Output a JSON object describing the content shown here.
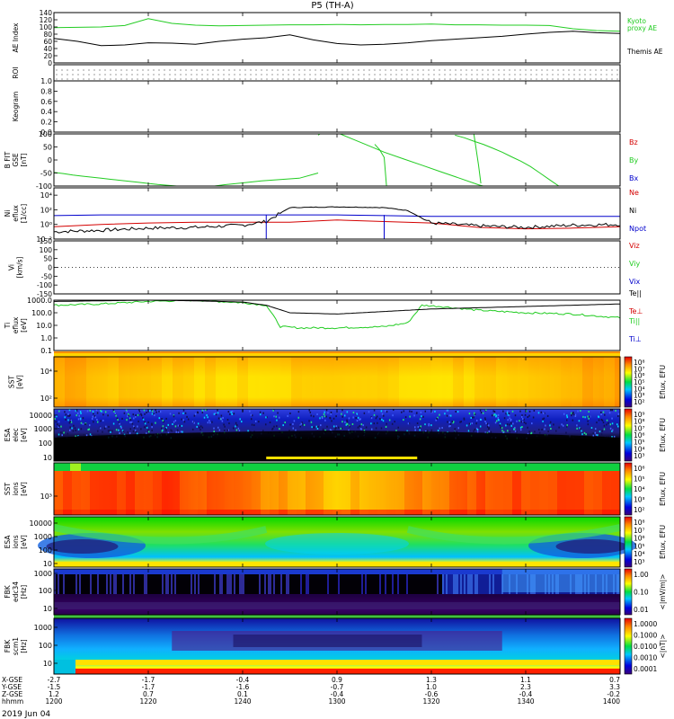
{
  "title": "P5 (TH-A)",
  "date": "2019 Jun 04",
  "colors": {
    "kyoto": "#22cc22",
    "themis": "#000000",
    "red": "#d40000",
    "green": "#22cc22",
    "blue": "#0000cc",
    "black": "#000000"
  },
  "chart_data": {
    "type": "multi-panel timeseries",
    "time_axis": {
      "range": [
        "12:00",
        "14:00"
      ],
      "ticks": [
        "1200",
        "1220",
        "1240",
        "1300",
        "1320",
        "1340",
        "1400"
      ],
      "rows": [
        {
          "label": "X-GSE",
          "values": [
            "-2.7",
            "-1.7",
            "-0.4",
            "0.9",
            "1.3",
            "1.1",
            "0.7"
          ]
        },
        {
          "label": "Y-GSE",
          "values": [
            "-1.5",
            "-1.7",
            "-1.6",
            "-0.7",
            "1.0",
            "2.3",
            "3.3"
          ]
        },
        {
          "label": "Z-GSE",
          "values": [
            "1.2",
            "0.7",
            "0.1",
            "-0.4",
            "-0.6",
            "-0.4",
            "-0.2"
          ]
        },
        {
          "label": "hhmm",
          "values": [
            "1200",
            "1220",
            "1240",
            "1300",
            "1320",
            "1340",
            "1400"
          ]
        }
      ]
    },
    "panels": [
      {
        "id": "ae",
        "ylabel": "AE Index",
        "ylim": [
          0,
          140
        ],
        "yticks": [
          "0",
          "20",
          "40",
          "60",
          "80",
          "100",
          "120",
          "140"
        ],
        "series": [
          {
            "name": "Kyoto proxy AE",
            "label_lines": [
              "Kyoto",
              "proxy AE"
            ],
            "color": "#22cc22",
            "x": [
              0,
              5,
              10,
              15,
              20,
              25,
              30,
              35,
              40,
              45,
              50,
              55,
              60,
              65,
              70,
              75,
              80,
              85,
              90,
              95,
              100,
              105,
              110,
              115,
              120
            ],
            "y": [
              98,
              99,
              100,
              104,
              123,
              110,
              105,
              103,
              104,
              105,
              106,
              106,
              107,
              106,
              107,
              107,
              108,
              106,
              106,
              105,
              105,
              104,
              95,
              90,
              88
            ]
          },
          {
            "name": "Themis AE",
            "label_lines": [
              "Themis AE"
            ],
            "color": "#000000",
            "x": [
              0,
              5,
              10,
              15,
              20,
              25,
              30,
              35,
              40,
              45,
              50,
              55,
              60,
              65,
              70,
              75,
              80,
              85,
              90,
              95,
              100,
              105,
              110,
              115,
              120
            ],
            "y": [
              68,
              60,
              48,
              50,
              56,
              55,
              52,
              60,
              66,
              70,
              78,
              64,
              54,
              50,
              52,
              56,
              62,
              66,
              70,
              74,
              80,
              85,
              88,
              84,
              82
            ]
          }
        ]
      },
      {
        "id": "roi",
        "ylabel": "ROI",
        "kind": "dots"
      },
      {
        "id": "keogram",
        "ylabel": "Keogram",
        "ylim": [
          0,
          1
        ],
        "yticks": [
          "0.0",
          "0.2",
          "0.4",
          "0.6",
          "0.8",
          "1.0"
        ]
      },
      {
        "id": "bfit",
        "ylabel_lines": [
          "B FIT",
          "GSE",
          "[nT]"
        ],
        "ylim": [
          -100,
          100
        ],
        "yticks": [
          "-100",
          "-50",
          "0",
          "50",
          "100"
        ],
        "legend": [
          "Bz",
          "By",
          "Bx"
        ],
        "series": [
          {
            "name": "By",
            "color": "#22cc22",
            "segments": [
              {
                "x": [
                  0,
                  2,
                  4,
                  6,
                  8,
                  10,
                  12,
                  14,
                  16,
                  18,
                  20,
                  22,
                  24,
                  26,
                  28,
                  30,
                  32,
                  34,
                  36
                ],
                "y": [
                  -48,
                  -52,
                  -58,
                  -62,
                  -66,
                  -70,
                  -74,
                  -78,
                  -82,
                  -86,
                  -90,
                  -94,
                  -97,
                  -100,
                  -104,
                  -110,
                  -116,
                  -124,
                  -130
                ]
              },
              {
                "x": [
                  26,
                  30,
                  36,
                  40,
                  44,
                  48,
                  52,
                  56
                ],
                "y": [
                  -130,
                  -110,
                  -95,
                  -88,
                  -80,
                  -75,
                  -70,
                  -50
                ]
              },
              {
                "x": [
                  56,
                  58,
                  62,
                  66,
                  70,
                  74,
                  78,
                  82,
                  86,
                  90,
                  94,
                  98,
                  102,
                  106,
                  110,
                  114,
                  118,
                  120
                ],
                "y": [
                  95,
                  120,
                  90,
                  60,
                  30,
                  5,
                  -20,
                  -45,
                  -70,
                  -95,
                  -115,
                  -130,
                  -140,
                  -150,
                  -155,
                  -160,
                  -165,
                  -170
                ]
              },
              {
                "x": [
                  68,
                  69,
                  70,
                  70.5
                ],
                "y": [
                  60,
                  40,
                  10,
                  -100
                ]
              },
              {
                "x": [
                  89,
                  90,
                  90.5
                ],
                "y": [
                  100,
                  -20,
                  -90
                ]
              },
              {
                "x": [
                  85,
                  87,
                  89,
                  91,
                  93,
                  95,
                  97,
                  99,
                  101,
                  103,
                  105,
                  107
                ],
                "y": [
                  95,
                  85,
                  72,
                  60,
                  45,
                  30,
                  12,
                  -5,
                  -25,
                  -50,
                  -75,
                  -100
                ]
              }
            ]
          }
        ]
      },
      {
        "id": "density",
        "ylabel_lines": [
          "Ni",
          "eflux",
          "[1/cc]"
        ],
        "ylim_log": [
          -2,
          5
        ],
        "yticks": [
          "10⁻²",
          "10⁰",
          "10²",
          "10⁴"
        ],
        "legend": [
          "Ne",
          "Ni",
          "Npot"
        ],
        "series": [
          {
            "name": "Ne",
            "color": "#d40000",
            "x": [
              0,
              10,
              20,
              30,
              40,
              50,
              60,
              70,
              80,
              90,
              100,
              110,
              120
            ],
            "y": [
              -0.3,
              0,
              0.2,
              0.3,
              0.3,
              0.3,
              0.6,
              0.4,
              0.2,
              -0.4,
              -0.6,
              -0.5,
              -0.3
            ]
          },
          {
            "name": "Npot",
            "color": "#0000cc",
            "x": [
              0,
              10,
              20,
              30,
              40,
              50,
              60,
              70,
              80,
              90,
              100,
              110,
              120
            ],
            "y": [
              1.2,
              1.3,
              1.3,
              1.3,
              1.3,
              1.3,
              1.3,
              1.2,
              1.1,
              1.1,
              1.1,
              1.1,
              1.1
            ]
          },
          {
            "name": "Ni",
            "color": "#000000",
            "x": [
              0,
              10,
              20,
              30,
              40,
              45,
              50,
              60,
              70,
              75,
              80,
              90,
              100,
              110,
              120
            ],
            "y": [
              -1,
              -0.8,
              -0.5,
              -0.4,
              -0.1,
              0.4,
              2.3,
              2.4,
              2.3,
              1.9,
              0.2,
              -0.2,
              -0.4,
              -0.1,
              0
            ]
          }
        ]
      },
      {
        "id": "velocity",
        "ylabel_lines": [
          "Vi",
          "[km/s]"
        ],
        "ylim": [
          -150,
          150
        ],
        "yticks": [
          "-150",
          "-100",
          "-50",
          "0",
          "50",
          "100",
          "150"
        ],
        "legend": [
          "Viz",
          "Viy",
          "Vix"
        ]
      },
      {
        "id": "temperature",
        "ylabel_lines": [
          "Ti",
          "eflux",
          "[eV]"
        ],
        "ylim_log": [
          -1,
          3
        ],
        "yticks": [
          "0.1",
          "1.0",
          "10.0",
          "100.0",
          "1000.0"
        ],
        "legend": [
          "Te||",
          "Te⊥",
          "Ti||",
          "Ti⊥"
        ],
        "series": [
          {
            "name": "Ti||",
            "color": "#22cc22",
            "x": [
              0,
              10,
              20,
              30,
              40,
              45,
              48,
              52,
              60,
              70,
              75,
              78,
              82,
              90,
              100,
              110,
              120
            ],
            "y": [
              2.6,
              2.7,
              2.9,
              3.0,
              2.8,
              2.6,
              0.9,
              0.8,
              0.8,
              0.9,
              1.2,
              2.6,
              2.5,
              2.2,
              2.0,
              1.9,
              1.6
            ]
          },
          {
            "name": "Te||",
            "color": "#000000",
            "x": [
              0,
              10,
              20,
              30,
              40,
              45,
              50,
              60,
              70,
              80,
              90,
              100,
              110,
              120
            ],
            "y": [
              2.9,
              2.95,
              3.0,
              2.95,
              2.85,
              2.6,
              2.0,
              1.9,
              2.1,
              2.3,
              2.4,
              2.5,
              2.6,
              2.7
            ]
          }
        ]
      },
      {
        "id": "sst_e",
        "ylabel_lines": [
          "SST",
          "[eV]"
        ],
        "yticks": [
          "10²",
          "10⁴"
        ],
        "cbar_ticks": [
          "10⁸",
          "10⁷",
          "10⁶",
          "10⁵",
          "10⁴",
          "10³",
          "10²"
        ],
        "cbar_label": "Eflux, EFU"
      },
      {
        "id": "esa_e",
        "ylabel_lines": [
          "ESA",
          "elec",
          "[eV]"
        ],
        "yticks": [
          "10",
          "100",
          "1000",
          "10000"
        ],
        "cbar_ticks": [
          "10⁹",
          "10⁸",
          "10⁷",
          "10⁶",
          "10⁵",
          "10⁴",
          "10³"
        ],
        "cbar_label": "Eflux, EFU"
      },
      {
        "id": "sst_i",
        "ylabel_lines": [
          "SST",
          "ions",
          "[eV]"
        ],
        "yticks": [
          "10³"
        ],
        "cbar_ticks": [
          "10⁶",
          "10⁵",
          "10⁴",
          "10³",
          "10²"
        ],
        "cbar_label": "Eflux, EFU"
      },
      {
        "id": "esa_i",
        "ylabel_lines": [
          "ESA",
          "ions",
          "[eV]"
        ],
        "yticks": [
          "10",
          "100",
          "1000",
          "10000"
        ],
        "cbar_ticks": [
          "10⁸",
          "10⁷",
          "10⁶",
          "10⁵",
          "10⁴",
          "10³"
        ],
        "cbar_label": "Eflux, EFU"
      },
      {
        "id": "fbk_e",
        "ylabel_lines": [
          "FBK",
          "edc34",
          "[Hz]"
        ],
        "yticks": [
          "10",
          "100",
          "1000"
        ],
        "cbar_ticks": [
          "1.00",
          "0.10",
          "0.01"
        ],
        "cbar_label": "<|mV/m|>"
      },
      {
        "id": "fbk_b",
        "ylabel_lines": [
          "FBK",
          "scm1",
          "[Hz]"
        ],
        "yticks": [
          "10",
          "100",
          "1000"
        ],
        "cbar_ticks": [
          "1.0000",
          "0.1000",
          "0.0100",
          "0.0010",
          "0.0001"
        ],
        "cbar_label": "<|nT|>"
      }
    ]
  }
}
